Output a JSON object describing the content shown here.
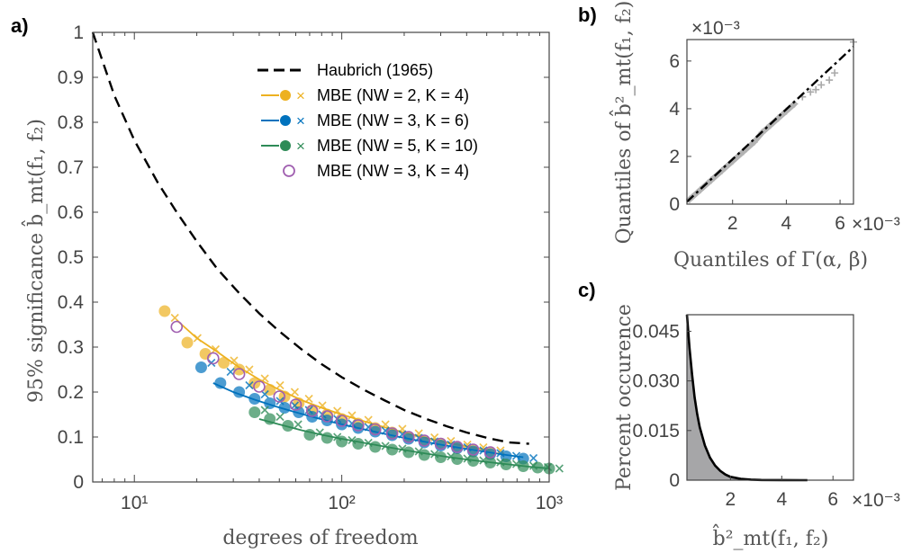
{
  "chart_data": [
    {
      "panel": "a)",
      "type": "scatter",
      "xscale": "log",
      "xlim": [
        6.3,
        1000
      ],
      "ylim": [
        0,
        1
      ],
      "xlabel": "degrees of freedom",
      "ylabel": "95% significance b̂_mt(f₁, f₂)",
      "x_ticks": [
        10,
        100,
        1000
      ],
      "x_tick_labels": [
        "10¹",
        "10²",
        "10³"
      ],
      "y_ticks": [
        0,
        0.1,
        0.2,
        0.3,
        0.4,
        0.5,
        0.6,
        0.7,
        0.8,
        0.9,
        1
      ],
      "y_tick_labels": [
        "0",
        "0.1",
        "0.2",
        "0.3",
        "0.4",
        "0.5",
        "0.6",
        "0.7",
        "0.8",
        "0.9",
        "1"
      ],
      "legend_position": "top-right",
      "series": [
        {
          "name": "Haubrich (1965)",
          "style": "dashed-line",
          "color": "#000000",
          "x": [
            6.3,
            8,
            10,
            13,
            16,
            20,
            25,
            32,
            40,
            50,
            64,
            80,
            100,
            128,
            160,
            200,
            256,
            320,
            400,
            512,
            640,
            800
          ],
          "y": [
            1.0,
            0.86,
            0.76,
            0.665,
            0.6,
            0.535,
            0.475,
            0.42,
            0.375,
            0.335,
            0.295,
            0.262,
            0.233,
            0.205,
            0.182,
            0.16,
            0.14,
            0.124,
            0.11,
            0.097,
            0.088,
            0.085
          ]
        },
        {
          "name": "MBE (NW = 2, K = 4)",
          "color": "#EDB120",
          "x": [
            14,
            18,
            22,
            27,
            32,
            38,
            45,
            53,
            62,
            72,
            85,
            100,
            120,
            145,
            175,
            210,
            250,
            300,
            360,
            430,
            520
          ],
          "y_dots": [
            0.38,
            0.31,
            0.285,
            0.265,
            0.25,
            0.22,
            0.205,
            0.19,
            0.175,
            0.16,
            0.15,
            0.14,
            0.13,
            0.12,
            0.11,
            0.1,
            0.092,
            0.085,
            0.078,
            0.072,
            0.065
          ],
          "y_crosses": [
            0.365,
            0.32,
            0.295,
            0.27,
            0.25,
            0.23,
            0.215,
            0.2,
            0.185,
            0.17,
            0.158,
            0.148,
            0.138,
            0.128,
            0.118,
            0.108,
            0.099,
            0.091,
            0.083,
            0.077,
            0.07
          ],
          "fit_x": [
            16,
            20,
            25,
            32,
            40,
            50,
            64,
            80,
            100,
            128,
            160,
            200,
            256,
            320,
            400,
            520
          ],
          "fit_y": [
            0.36,
            0.32,
            0.29,
            0.255,
            0.228,
            0.205,
            0.182,
            0.165,
            0.15,
            0.135,
            0.122,
            0.11,
            0.098,
            0.088,
            0.079,
            0.07
          ]
        },
        {
          "name": "MBE (NW = 3, K = 6)",
          "color": "#0072BD",
          "x": [
            21,
            26,
            32,
            38,
            45,
            53,
            62,
            72,
            85,
            100,
            120,
            145,
            175,
            210,
            250,
            300,
            360,
            430,
            520,
            620,
            750
          ],
          "y_dots": [
            0.255,
            0.22,
            0.2,
            0.185,
            0.175,
            0.165,
            0.155,
            0.145,
            0.137,
            0.128,
            0.12,
            0.112,
            0.104,
            0.096,
            0.088,
            0.081,
            0.075,
            0.068,
            0.062,
            0.057,
            0.052
          ],
          "y_crosses": [
            0.265,
            0.245,
            0.215,
            0.195,
            0.18,
            0.17,
            0.16,
            0.15,
            0.14,
            0.13,
            0.122,
            0.114,
            0.106,
            0.098,
            0.09,
            0.083,
            0.077,
            0.07,
            0.064,
            0.058,
            0.053
          ],
          "fit_x": [
            24,
            30,
            38,
            48,
            60,
            76,
            96,
            120,
            150,
            190,
            240,
            300,
            380,
            480,
            600,
            750
          ],
          "fit_y": [
            0.22,
            0.2,
            0.183,
            0.168,
            0.155,
            0.142,
            0.13,
            0.12,
            0.11,
            0.1,
            0.091,
            0.083,
            0.075,
            0.068,
            0.061,
            0.055
          ]
        },
        {
          "name": "MBE (NW = 5, K = 10)",
          "color": "#2E8B57",
          "x": [
            38,
            45,
            55,
            70,
            85,
            100,
            120,
            145,
            175,
            210,
            250,
            300,
            360,
            430,
            520,
            620,
            750,
            880,
            1000
          ],
          "y_dots": [
            0.155,
            0.14,
            0.125,
            0.105,
            0.098,
            0.09,
            0.085,
            0.078,
            0.072,
            0.066,
            0.06,
            0.055,
            0.051,
            0.047,
            0.043,
            0.039,
            0.035,
            0.032,
            0.03
          ],
          "y_crosses": [
            0.16,
            0.145,
            0.128,
            0.11,
            0.1,
            0.093,
            0.087,
            0.08,
            0.074,
            0.068,
            0.062,
            0.057,
            0.052,
            0.048,
            0.044,
            0.04,
            0.036,
            0.033,
            0.03
          ],
          "fit_x": [
            40,
            50,
            64,
            80,
            100,
            128,
            160,
            200,
            256,
            320,
            400,
            512,
            640,
            800,
            1000
          ],
          "fit_y": [
            0.14,
            0.128,
            0.115,
            0.105,
            0.096,
            0.087,
            0.079,
            0.071,
            0.063,
            0.056,
            0.05,
            0.044,
            0.039,
            0.034,
            0.03
          ]
        },
        {
          "name": "MBE (NW = 3, K = 4)",
          "color": "#A05FB0",
          "x": [
            16,
            24,
            32,
            40,
            50,
            60,
            72,
            85,
            100,
            120,
            145,
            175,
            210,
            250,
            300,
            360,
            430,
            520
          ],
          "y_circles": [
            0.345,
            0.275,
            0.24,
            0.212,
            0.19,
            0.172,
            0.158,
            0.146,
            0.136,
            0.126,
            0.117,
            0.108,
            0.1,
            0.092,
            0.085,
            0.078,
            0.072,
            0.066
          ]
        }
      ]
    },
    {
      "panel": "b)",
      "type": "scatter",
      "xlim": [
        0.0003,
        0.0065
      ],
      "ylim": [
        0,
        0.0069
      ],
      "x_ticks": [
        0.002,
        0.004,
        0.006
      ],
      "x_tick_labels": [
        "2",
        "4",
        "6"
      ],
      "y_ticks": [
        0,
        0.002,
        0.004,
        0.006
      ],
      "y_tick_labels": [
        "0",
        "2",
        "4",
        "6"
      ],
      "x_exponent": "×10⁻³",
      "y_exponent": "×10⁻³",
      "xlabel": "Quantiles of Γ(α, β)",
      "ylabel": "Quantiles of b̂²_mt(f₁, f₂)",
      "reference_line": {
        "x": [
          0.0003,
          0.0065
        ],
        "y": [
          0.0001,
          0.0066
        ]
      },
      "points_x": [
        0.0004,
        0.0008,
        0.0012,
        0.0016,
        0.002,
        0.0024,
        0.0028,
        0.0031,
        0.0034,
        0.0037,
        0.004,
        0.0043,
        0.0046,
        0.0049,
        0.0051,
        0.0053,
        0.0056,
        0.0058,
        0.0065
      ],
      "points_y": [
        0.0002,
        0.0006,
        0.001,
        0.0014,
        0.0018,
        0.0022,
        0.0026,
        0.003,
        0.0033,
        0.0036,
        0.0039,
        0.0042,
        0.0045,
        0.0047,
        0.0048,
        0.005,
        0.0052,
        0.0055,
        0.0068
      ]
    },
    {
      "panel": "c)",
      "type": "area",
      "xlim": [
        0.0003,
        0.0068
      ],
      "ylim": [
        0,
        0.05
      ],
      "x_ticks": [
        0.002,
        0.004,
        0.006
      ],
      "x_tick_labels": [
        "2",
        "4",
        "6"
      ],
      "y_ticks": [
        0,
        0.015,
        0.03,
        0.045
      ],
      "y_tick_labels": [
        "0",
        "0.015",
        "0.030",
        "0.045"
      ],
      "x_exponent": "×10⁻³",
      "xlabel": "b̂²_mt(f₁, f₂)",
      "ylabel": "Percent occurence",
      "curve_x": [
        0.0003,
        0.0004,
        0.0005,
        0.0006,
        0.0007,
        0.0008,
        0.001,
        0.0012,
        0.0014,
        0.0016,
        0.0018,
        0.002,
        0.0024,
        0.0028,
        0.0032,
        0.004,
        0.005
      ],
      "curve_y": [
        0.05,
        0.04,
        0.032,
        0.025,
        0.02,
        0.016,
        0.0105,
        0.0068,
        0.0044,
        0.0028,
        0.0017,
        0.001,
        0.0004,
        0.00015,
        5e-05,
        1e-05,
        0
      ]
    }
  ]
}
